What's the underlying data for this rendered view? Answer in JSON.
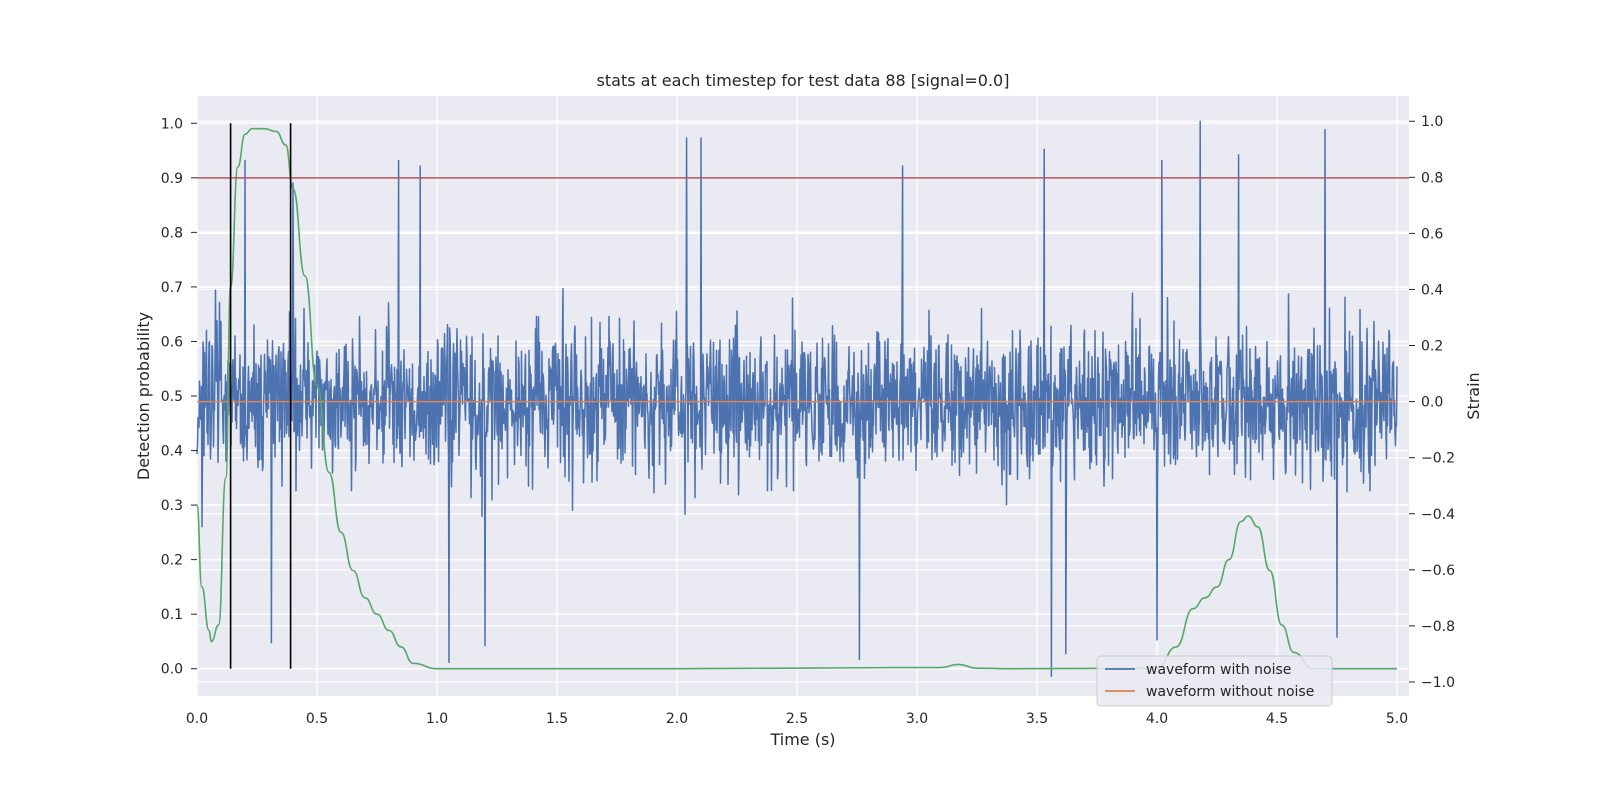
{
  "chart_data": {
    "type": "line",
    "title": "stats at each timestep for test data 88 [signal=0.0]",
    "xlabel": "Time (s)",
    "ylabel": "Detection probability",
    "ylabel_right": "Strain",
    "xlim": [
      0.0,
      5.05
    ],
    "ylim": [
      -0.05,
      1.05
    ],
    "ylim_right": [
      -1.05,
      1.09
    ],
    "x_ticks": [
      "0.0",
      "0.5",
      "1.0",
      "1.5",
      "2.0",
      "2.5",
      "3.0",
      "3.5",
      "4.0",
      "4.5",
      "5.0"
    ],
    "y_ticks": [
      "0.0",
      "0.1",
      "0.2",
      "0.3",
      "0.4",
      "0.5",
      "0.6",
      "0.7",
      "0.8",
      "0.9",
      "1.0"
    ],
    "y_ticks_right": [
      "1.0",
      "0.8",
      "0.6",
      "0.4",
      "0.2",
      "0.0",
      "−0.2",
      "−0.4",
      "−0.6",
      "−0.8",
      "−1.0"
    ],
    "grid": true,
    "legend_position": "lower-right",
    "threshold": 0.9,
    "vertical_markers": [
      0.14,
      0.39
    ],
    "series": [
      {
        "name": "waveform with noise",
        "axis": "right",
        "color": "#4c72b0",
        "description_stats": {
          "mean": 0.0,
          "typical_range": [
            -0.45,
            0.55
          ],
          "min": -0.98,
          "max": 1.0
        },
        "peaks": [
          {
            "x": 0.2,
            "y": 0.86
          },
          {
            "x": 0.4,
            "y": 0.78
          },
          {
            "x": 0.84,
            "y": 0.86
          },
          {
            "x": 0.93,
            "y": 0.84
          },
          {
            "x": 2.04,
            "y": 0.94
          },
          {
            "x": 2.1,
            "y": 0.94
          },
          {
            "x": 2.94,
            "y": 0.84
          },
          {
            "x": 3.53,
            "y": 0.9
          },
          {
            "x": 4.02,
            "y": 0.86
          },
          {
            "x": 4.18,
            "y": 1.0
          },
          {
            "x": 4.34,
            "y": 0.88
          },
          {
            "x": 4.7,
            "y": 0.97
          }
        ],
        "troughs": [
          {
            "x": 0.31,
            "y": -0.86
          },
          {
            "x": 1.05,
            "y": -0.93
          },
          {
            "x": 1.2,
            "y": -0.87
          },
          {
            "x": 2.76,
            "y": -0.92
          },
          {
            "x": 3.56,
            "y": -0.98
          },
          {
            "x": 3.62,
            "y": -0.9
          },
          {
            "x": 4.0,
            "y": -0.85
          },
          {
            "x": 4.75,
            "y": -0.84
          }
        ]
      },
      {
        "name": "waveform without noise",
        "axis": "right",
        "color": "#dd8452",
        "x": [
          0.0,
          5.0
        ],
        "y": [
          0.0,
          0.0
        ]
      },
      {
        "name": "",
        "axis": "left",
        "color": "#55a868",
        "x": [
          0.0,
          0.02,
          0.05,
          0.06,
          0.09,
          0.12,
          0.14,
          0.17,
          0.2,
          0.23,
          0.28,
          0.33,
          0.37,
          0.4,
          0.45,
          0.5,
          0.55,
          0.6,
          0.65,
          0.7,
          0.75,
          0.8,
          0.85,
          0.9,
          1.0,
          2.0,
          2.9,
          3.1,
          3.17,
          3.25,
          3.4,
          4.0,
          4.08,
          4.15,
          4.2,
          4.25,
          4.3,
          4.35,
          4.38,
          4.42,
          4.47,
          4.52,
          4.57,
          4.65,
          5.0
        ],
        "y": [
          0.3,
          0.15,
          0.07,
          0.05,
          0.08,
          0.35,
          0.7,
          0.92,
          0.98,
          0.99,
          0.99,
          0.985,
          0.96,
          0.88,
          0.72,
          0.52,
          0.36,
          0.25,
          0.18,
          0.13,
          0.1,
          0.07,
          0.04,
          0.01,
          0.0,
          0.0,
          0.002,
          0.002,
          0.008,
          0.001,
          0.0,
          0.001,
          0.04,
          0.11,
          0.13,
          0.15,
          0.2,
          0.27,
          0.28,
          0.26,
          0.18,
          0.08,
          0.03,
          0.0,
          0.0
        ]
      }
    ]
  }
}
